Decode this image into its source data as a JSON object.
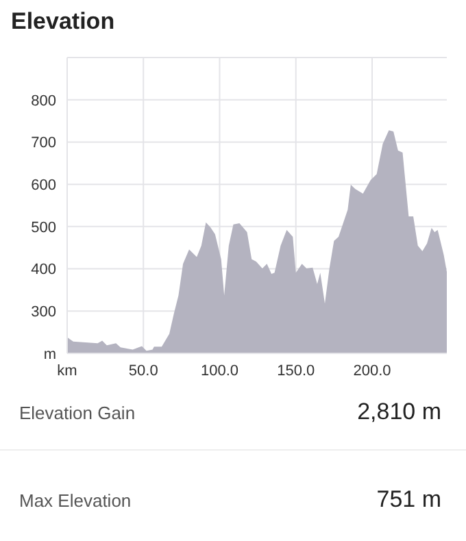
{
  "chart_data": {
    "type": "area",
    "title": "Elevation",
    "color": "#b4b3c0",
    "x": [
      0,
      0,
      4,
      20,
      23,
      26,
      32,
      35,
      43,
      49,
      52,
      56,
      57,
      62,
      67,
      70,
      73,
      76,
      80,
      85,
      88,
      91,
      94,
      97,
      101,
      103,
      106,
      109,
      113,
      118,
      121,
      124,
      128,
      131,
      134,
      136,
      140,
      144,
      148,
      150,
      154,
      157,
      161,
      164,
      166,
      169,
      172,
      175,
      178,
      184,
      186,
      189,
      194,
      199,
      203,
      207,
      211,
      214,
      217,
      220,
      224,
      227,
      230,
      233,
      236,
      239,
      241,
      243,
      247,
      249
    ],
    "values": [
      251,
      238,
      228,
      224,
      230,
      219,
      224,
      214,
      209,
      217,
      206,
      209,
      216,
      216,
      246,
      294,
      337,
      412,
      446,
      428,
      455,
      510,
      498,
      482,
      423,
      337,
      455,
      505,
      508,
      487,
      423,
      417,
      401,
      412,
      388,
      391,
      455,
      492,
      476,
      391,
      412,
      401,
      403,
      364,
      391,
      318,
      401,
      466,
      476,
      540,
      599,
      589,
      578,
      610,
      624,
      696,
      728,
      725,
      680,
      675,
      524,
      524,
      455,
      442,
      460,
      497,
      487,
      492,
      433,
      393
    ],
    "xlim": [
      0,
      249
    ],
    "xticks": [
      {
        "value": 0,
        "label": "km"
      },
      {
        "value": 50,
        "label": "50.0"
      },
      {
        "value": 100,
        "label": "100.0"
      },
      {
        "value": 150,
        "label": "150.0"
      },
      {
        "value": 200,
        "label": "200.0"
      }
    ],
    "ylim": [
      200,
      900
    ],
    "yticks": [
      {
        "value": 200,
        "label": "m"
      },
      300,
      400,
      500,
      600,
      700,
      800,
      {
        "value": 900,
        "label": null
      }
    ],
    "grid": true,
    "marker": "none",
    "annotations": [
      "Elevation Gain",
      "2,810 m",
      "Max Elevation",
      "751 m"
    ]
  }
}
